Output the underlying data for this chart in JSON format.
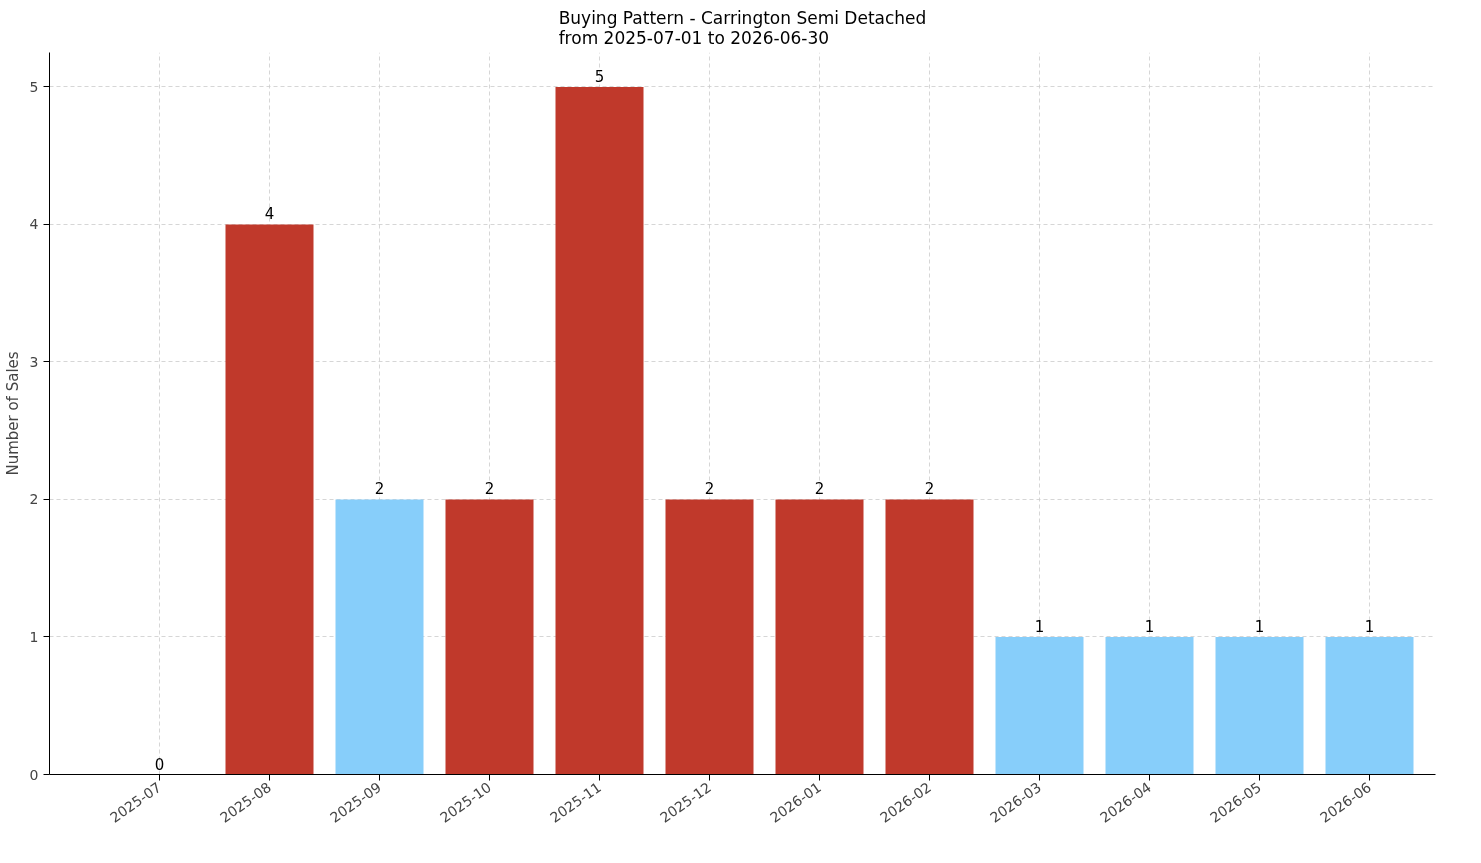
{
  "chart_data": {
    "type": "bar",
    "title": "Buying Pattern - Carrington Semi Detached\nfrom 2025-07-01 to 2026-06-30",
    "ylabel": "Number of Sales",
    "categories": [
      "2025-07",
      "2025-08",
      "2025-09",
      "2025-10",
      "2025-11",
      "2025-12",
      "2026-01",
      "2026-02",
      "2026-03",
      "2026-04",
      "2026-05",
      "2026-06"
    ],
    "values": [
      0,
      4,
      2,
      2,
      5,
      2,
      2,
      2,
      1,
      1,
      1,
      1
    ],
    "colors": [
      "#c0392b",
      "#c0392b",
      "#87cefa",
      "#c0392b",
      "#c0392b",
      "#c0392b",
      "#c0392b",
      "#c0392b",
      "#87cefa",
      "#87cefa",
      "#87cefa",
      "#87cefa"
    ],
    "ylim": [
      0,
      5.25
    ],
    "yticks": [
      0,
      1,
      2,
      3,
      4,
      5
    ],
    "grid": true,
    "data_labels": true
  }
}
